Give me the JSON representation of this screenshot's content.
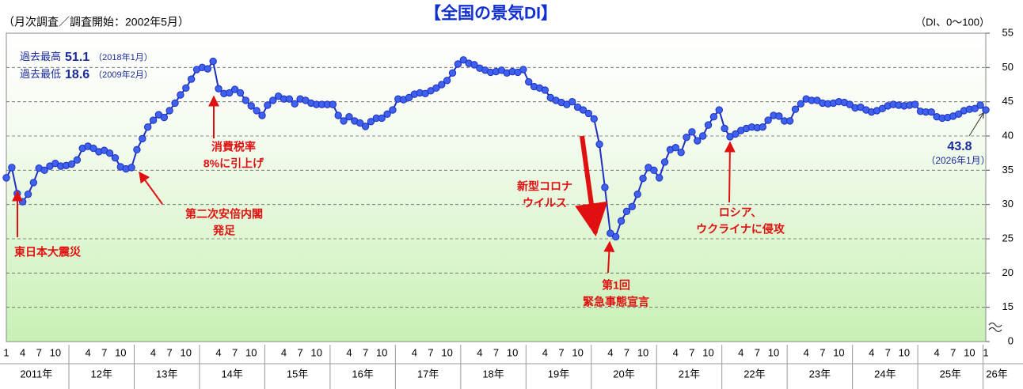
{
  "chart_data": {
    "type": "line",
    "title": "【全国の景気DI】",
    "subtitle": "（月次調査／調査開始：2002年5月）",
    "y_unit": "（DI、0～100）",
    "categories": [
      "1",
      null,
      null,
      "4",
      null,
      null,
      "7",
      null,
      null,
      "10",
      null,
      null,
      null,
      null,
      null,
      "4",
      null,
      null,
      "7",
      null,
      null,
      "10",
      null,
      null,
      null,
      null,
      null,
      "4",
      null,
      null,
      "7",
      null,
      null,
      "10",
      null,
      null,
      null,
      null,
      null,
      "4",
      null,
      null,
      "7",
      null,
      null,
      "10",
      null,
      null,
      null,
      null,
      null,
      "4",
      null,
      null,
      "7",
      null,
      null,
      "10",
      null,
      null,
      null,
      null,
      null,
      "4",
      null,
      null,
      "7",
      null,
      null,
      "10",
      null,
      null,
      null,
      null,
      null,
      "4",
      null,
      null,
      "7",
      null,
      null,
      "10",
      null,
      null,
      null,
      null,
      null,
      "4",
      null,
      null,
      "7",
      null,
      null,
      "10",
      null,
      null,
      null,
      null,
      null,
      "4",
      null,
      null,
      "7",
      null,
      null,
      "10",
      null,
      null,
      null,
      null,
      null,
      "4",
      null,
      null,
      "7",
      null,
      null,
      "10",
      null,
      null,
      null,
      null,
      null,
      "4",
      null,
      null,
      "7",
      null,
      null,
      "10",
      null,
      null,
      null,
      null,
      null,
      "4",
      null,
      null,
      "7",
      null,
      null,
      "10",
      null,
      null,
      null,
      null,
      null,
      "4",
      null,
      null,
      "7",
      null,
      null,
      "10",
      null,
      null,
      null,
      null,
      null,
      "4",
      null,
      null,
      "7",
      null,
      null,
      "10",
      null,
      null,
      null,
      null,
      null,
      "4",
      null,
      null,
      "7",
      null,
      null,
      "10",
      null,
      null,
      "1"
    ],
    "year_labels": [
      "2011年",
      "12年",
      "13年",
      "14年",
      "15年",
      "16年",
      "17年",
      "18年",
      "19年",
      "20年",
      "21年",
      "22年",
      "23年",
      "24年",
      "25年",
      "26年"
    ],
    "values": [
      33.9,
      35.4,
      31.6,
      30.4,
      31.5,
      33.2,
      35.3,
      35.0,
      35.6,
      36.0,
      35.6,
      35.7,
      35.9,
      36.5,
      38.2,
      38.5,
      38.2,
      37.7,
      37.9,
      37.5,
      36.8,
      35.5,
      35.2,
      35.4,
      38.0,
      39.6,
      41.3,
      42.3,
      43.1,
      42.7,
      43.7,
      44.8,
      46.0,
      47.0,
      48.3,
      49.7,
      50.0,
      49.8,
      50.9,
      46.9,
      46.2,
      46.3,
      46.8,
      46.3,
      45.2,
      44.4,
      43.7,
      43.0,
      44.5,
      45.2,
      45.8,
      45.4,
      45.4,
      44.7,
      45.4,
      45.2,
      44.8,
      44.6,
      44.6,
      44.6,
      44.6,
      43.0,
      42.2,
      42.8,
      42.2,
      41.9,
      41.4,
      42.1,
      42.6,
      42.6,
      43.2,
      43.8,
      45.4,
      45.3,
      45.6,
      46.1,
      46.3,
      46.2,
      46.6,
      47.0,
      47.5,
      48.1,
      49.2,
      50.5,
      51.1,
      50.6,
      50.4,
      49.9,
      49.6,
      49.3,
      49.4,
      49.6,
      49.2,
      49.4,
      49.3,
      49.7,
      47.9,
      47.2,
      47.0,
      46.7,
      45.6,
      45.2,
      44.9,
      44.6,
      45.0,
      44.2,
      43.8,
      43.3,
      42.5,
      38.8,
      32.5,
      25.8,
      25.3,
      27.6,
      29.0,
      29.7,
      31.5,
      33.8,
      35.4,
      35.0,
      33.9,
      36.2,
      38.0,
      38.3,
      37.6,
      39.8,
      40.6,
      39.3,
      40.0,
      41.6,
      42.8,
      43.8,
      41.1,
      39.9,
      40.3,
      40.8,
      41.1,
      41.3,
      41.2,
      41.3,
      42.3,
      43.0,
      42.9,
      42.2,
      42.2,
      43.9,
      44.7,
      45.4,
      45.2,
      45.2,
      44.8,
      44.7,
      44.8,
      45.0,
      44.9,
      44.6,
      44.1,
      44.2,
      43.8,
      43.5,
      43.7,
      44.0,
      44.4,
      44.6,
      44.5,
      44.4,
      44.5,
      44.6,
      43.6,
      43.5,
      43.5,
      42.8,
      42.6,
      42.7,
      42.9,
      43.2,
      43.7,
      43.9,
      44.0,
      44.5,
      43.8
    ],
    "line_color": "#1f2fbf",
    "marker_color": "#3f62ee",
    "ylim": [
      0,
      55
    ],
    "yticks": [
      0,
      15,
      20,
      25,
      30,
      35,
      40,
      45,
      50,
      55
    ],
    "axis_break": true,
    "grid": true,
    "records": [
      {
        "label": "過去最高",
        "value": 51.1,
        "date": "（2018年1月）"
      },
      {
        "label": "過去最低",
        "value": 18.6,
        "date": "（2009年2月）"
      }
    ],
    "annotations": [
      {
        "lines": [
          "東日本大震災"
        ]
      },
      {
        "lines": [
          "第二次安倍内閣",
          "発足"
        ]
      },
      {
        "lines": [
          "消費税率",
          "8%に引上げ"
        ]
      },
      {
        "lines": [
          "新型コロナ",
          "ウイルス"
        ]
      },
      {
        "lines": [
          "第1回",
          "緊急事態宣言"
        ]
      },
      {
        "lines": [
          "ロシア、",
          "ウクライナに侵攻"
        ]
      },
      {
        "lines": [
          "（2026年1月）"
        ]
      }
    ]
  }
}
